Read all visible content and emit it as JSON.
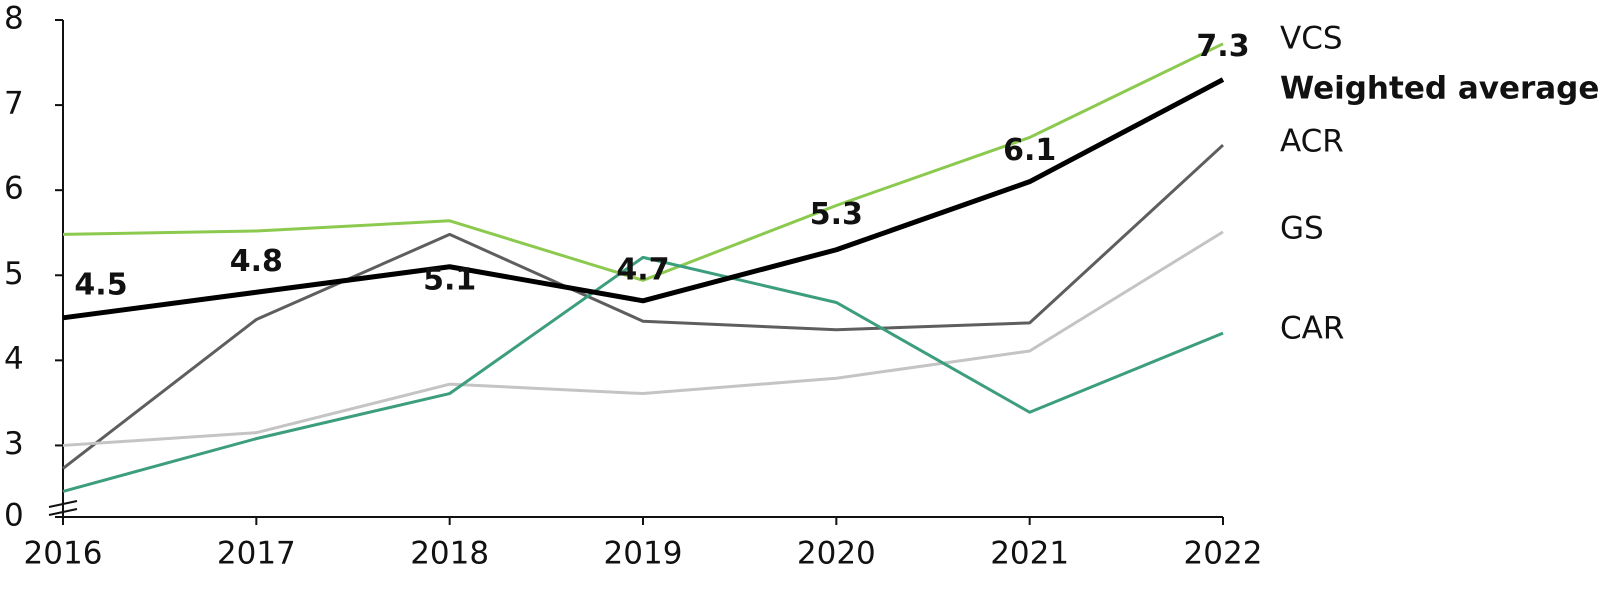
{
  "chart_data": {
    "type": "line",
    "x": [
      2016,
      2017,
      2018,
      2019,
      2020,
      2021,
      2022
    ],
    "xlim": [
      2016,
      2022
    ],
    "ylim": [
      0,
      8
    ],
    "yticks": [
      0,
      3,
      4,
      5,
      6,
      7,
      8
    ],
    "axis_break": [
      0,
      2.3
    ],
    "series": [
      {
        "name": "VCS",
        "color": "#8cc94f",
        "values": [
          5.48,
          5.52,
          5.64,
          4.94,
          5.82,
          6.62,
          7.72
        ]
      },
      {
        "name": "Weighted average",
        "color": "#000000",
        "values": [
          4.5,
          4.8,
          5.1,
          4.7,
          5.3,
          6.1,
          7.3
        ],
        "data_labels": true
      },
      {
        "name": "ACR",
        "color": "#5e5e5e",
        "values": [
          2.73,
          4.48,
          5.48,
          4.46,
          4.36,
          4.44,
          6.53
        ]
      },
      {
        "name": "GS",
        "color": "#c4c4c4",
        "values": [
          3.0,
          3.15,
          3.72,
          3.61,
          3.79,
          4.11,
          5.51
        ]
      },
      {
        "name": "CAR",
        "color": "#3c9e7e",
        "values": [
          2.46,
          3.08,
          3.61,
          5.21,
          4.68,
          3.39,
          4.32
        ]
      }
    ]
  }
}
